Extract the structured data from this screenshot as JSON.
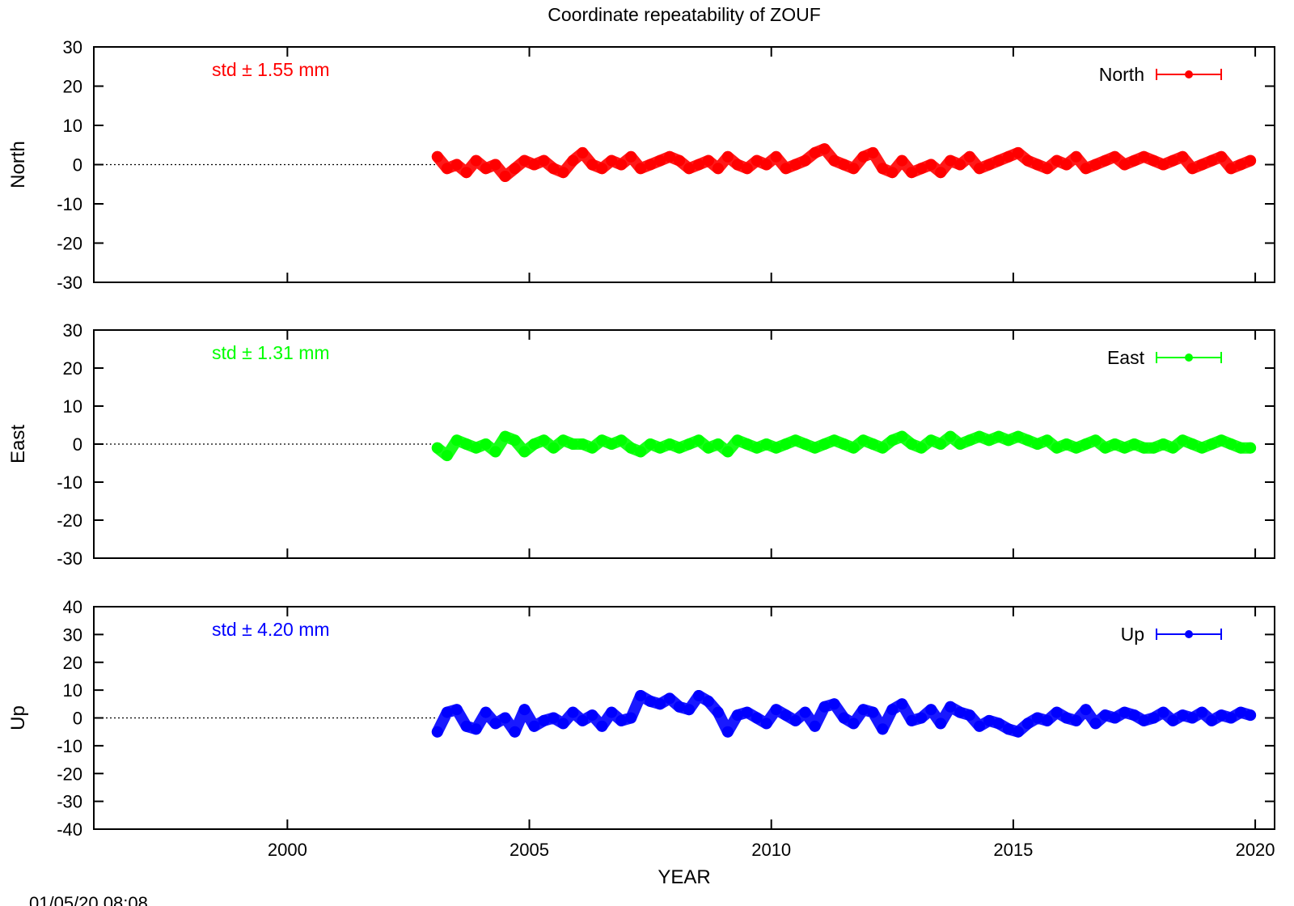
{
  "chart_data": {
    "type": "scatter",
    "title": "Coordinate repeatability of ZOUF",
    "xlabel": "YEAR",
    "xlim": [
      1996,
      2020.4
    ],
    "x_ticks": [
      "2000",
      "2005",
      "2010",
      "2015",
      "2020"
    ],
    "timestamp": "01/05/20 08:08",
    "panels": [
      {
        "name": "North",
        "ylabel": "North",
        "legend": "North",
        "std_label": "std ± 1.55 mm",
        "color": "#ff0000",
        "ylim": [
          -30,
          30
        ],
        "y_ticks": [
          "30",
          "20",
          "10",
          "0",
          "-10",
          "-20",
          "-30"
        ],
        "x": [
          2003.1,
          2003.3,
          2003.5,
          2003.7,
          2003.9,
          2004.1,
          2004.3,
          2004.5,
          2004.7,
          2004.9,
          2005.1,
          2005.3,
          2005.5,
          2005.7,
          2005.9,
          2006.1,
          2006.3,
          2006.5,
          2006.7,
          2006.9,
          2007.1,
          2007.3,
          2007.5,
          2007.7,
          2007.9,
          2008.1,
          2008.3,
          2008.5,
          2008.7,
          2008.9,
          2009.1,
          2009.3,
          2009.5,
          2009.7,
          2009.9,
          2010.1,
          2010.3,
          2010.5,
          2010.7,
          2010.9,
          2011.1,
          2011.3,
          2011.5,
          2011.7,
          2011.9,
          2012.1,
          2012.3,
          2012.5,
          2012.7,
          2012.9,
          2013.1,
          2013.3,
          2013.5,
          2013.7,
          2013.9,
          2014.1,
          2014.3,
          2014.5,
          2014.7,
          2014.9,
          2015.1,
          2015.3,
          2015.5,
          2015.7,
          2015.9,
          2016.1,
          2016.3,
          2016.5,
          2016.7,
          2016.9,
          2017.1,
          2017.3,
          2017.5,
          2017.7,
          2017.9,
          2018.1,
          2018.3,
          2018.5,
          2018.7,
          2018.9,
          2019.1,
          2019.3,
          2019.5,
          2019.7,
          2019.9
        ],
        "y": [
          2,
          -1,
          0,
          -2,
          1,
          -1,
          0,
          -3,
          -1,
          1,
          0,
          1,
          -1,
          -2,
          1,
          3,
          0,
          -1,
          1,
          0,
          2,
          -1,
          0,
          1,
          2,
          1,
          -1,
          0,
          1,
          -1,
          2,
          0,
          -1,
          1,
          0,
          2,
          -1,
          0,
          1,
          3,
          4,
          1,
          0,
          -1,
          2,
          3,
          -1,
          -2,
          1,
          -2,
          -1,
          0,
          -2,
          1,
          0,
          2,
          -1,
          0,
          1,
          2,
          3,
          1,
          0,
          -1,
          1,
          0,
          2,
          -1,
          0,
          1,
          2,
          0,
          1,
          2,
          1,
          0,
          1,
          2,
          -1,
          0,
          1,
          2,
          -1,
          0,
          1
        ]
      },
      {
        "name": "East",
        "ylabel": "East",
        "legend": "East",
        "std_label": "std ± 1.31 mm",
        "color": "#00ff00",
        "ylim": [
          -30,
          30
        ],
        "y_ticks": [
          "30",
          "20",
          "10",
          "0",
          "-10",
          "-20",
          "-30"
        ],
        "x": [
          2003.1,
          2003.3,
          2003.5,
          2003.7,
          2003.9,
          2004.1,
          2004.3,
          2004.5,
          2004.7,
          2004.9,
          2005.1,
          2005.3,
          2005.5,
          2005.7,
          2005.9,
          2006.1,
          2006.3,
          2006.5,
          2006.7,
          2006.9,
          2007.1,
          2007.3,
          2007.5,
          2007.7,
          2007.9,
          2008.1,
          2008.3,
          2008.5,
          2008.7,
          2008.9,
          2009.1,
          2009.3,
          2009.5,
          2009.7,
          2009.9,
          2010.1,
          2010.3,
          2010.5,
          2010.7,
          2010.9,
          2011.1,
          2011.3,
          2011.5,
          2011.7,
          2011.9,
          2012.1,
          2012.3,
          2012.5,
          2012.7,
          2012.9,
          2013.1,
          2013.3,
          2013.5,
          2013.7,
          2013.9,
          2014.1,
          2014.3,
          2014.5,
          2014.7,
          2014.9,
          2015.1,
          2015.3,
          2015.5,
          2015.7,
          2015.9,
          2016.1,
          2016.3,
          2016.5,
          2016.7,
          2016.9,
          2017.1,
          2017.3,
          2017.5,
          2017.7,
          2017.9,
          2018.1,
          2018.3,
          2018.5,
          2018.7,
          2018.9,
          2019.1,
          2019.3,
          2019.5,
          2019.7,
          2019.9
        ],
        "y": [
          -1,
          -3,
          1,
          0,
          -1,
          0,
          -2,
          2,
          1,
          -2,
          0,
          1,
          -1,
          1,
          0,
          0,
          -1,
          1,
          0,
          1,
          -1,
          -2,
          0,
          -1,
          0,
          -1,
          0,
          1,
          -1,
          0,
          -2,
          1,
          0,
          -1,
          0,
          -1,
          0,
          1,
          0,
          -1,
          0,
          1,
          0,
          -1,
          1,
          0,
          -1,
          1,
          2,
          0,
          -1,
          1,
          0,
          2,
          0,
          1,
          2,
          1,
          2,
          1,
          2,
          1,
          0,
          1,
          -1,
          0,
          -1,
          0,
          1,
          -1,
          0,
          -1,
          0,
          -1,
          -1,
          0,
          -1,
          1,
          0,
          -1,
          0,
          1,
          0,
          -1,
          -1
        ]
      },
      {
        "name": "Up",
        "ylabel": "Up",
        "legend": "Up",
        "std_label": "std ± 4.20 mm",
        "color": "#0000ff",
        "ylim": [
          -40,
          40
        ],
        "y_ticks": [
          "40",
          "30",
          "20",
          "10",
          "0",
          "-10",
          "-20",
          "-30",
          "-40"
        ],
        "x": [
          2003.1,
          2003.3,
          2003.5,
          2003.7,
          2003.9,
          2004.1,
          2004.3,
          2004.5,
          2004.7,
          2004.9,
          2005.1,
          2005.3,
          2005.5,
          2005.7,
          2005.9,
          2006.1,
          2006.3,
          2006.5,
          2006.7,
          2006.9,
          2007.1,
          2007.3,
          2007.5,
          2007.7,
          2007.9,
          2008.1,
          2008.3,
          2008.5,
          2008.7,
          2008.9,
          2009.1,
          2009.3,
          2009.5,
          2009.7,
          2009.9,
          2010.1,
          2010.3,
          2010.5,
          2010.7,
          2010.9,
          2011.1,
          2011.3,
          2011.5,
          2011.7,
          2011.9,
          2012.1,
          2012.3,
          2012.5,
          2012.7,
          2012.9,
          2013.1,
          2013.3,
          2013.5,
          2013.7,
          2013.9,
          2014.1,
          2014.3,
          2014.5,
          2014.7,
          2014.9,
          2015.1,
          2015.3,
          2015.5,
          2015.7,
          2015.9,
          2016.1,
          2016.3,
          2016.5,
          2016.7,
          2016.9,
          2017.1,
          2017.3,
          2017.5,
          2017.7,
          2017.9,
          2018.1,
          2018.3,
          2018.5,
          2018.7,
          2018.9,
          2019.1,
          2019.3,
          2019.5,
          2019.7,
          2019.9
        ],
        "y": [
          -5,
          2,
          3,
          -3,
          -4,
          2,
          -2,
          0,
          -5,
          3,
          -3,
          -1,
          0,
          -2,
          2,
          -1,
          1,
          -3,
          2,
          -1,
          0,
          8,
          6,
          5,
          7,
          4,
          3,
          8,
          6,
          2,
          -5,
          1,
          2,
          0,
          -2,
          3,
          1,
          -1,
          2,
          -3,
          4,
          5,
          0,
          -2,
          3,
          2,
          -4,
          3,
          5,
          -1,
          0,
          3,
          -2,
          4,
          2,
          1,
          -3,
          -1,
          -2,
          -4,
          -5,
          -2,
          0,
          -1,
          2,
          0,
          -1,
          3,
          -2,
          1,
          0,
          2,
          1,
          -1,
          0,
          2,
          -1,
          1,
          0,
          2,
          -1,
          1,
          0,
          2,
          1
        ]
      }
    ]
  }
}
